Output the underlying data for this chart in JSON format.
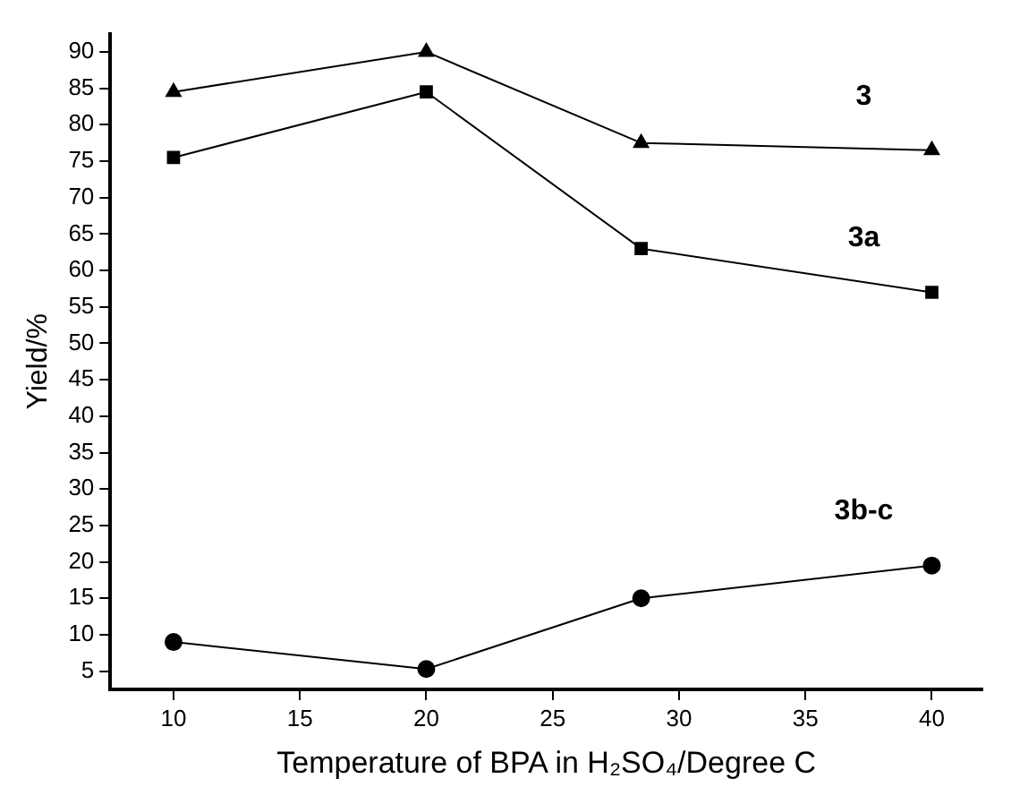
{
  "chart_data": {
    "type": "line",
    "xlabel": "Temperature of BPA in H₂SO₄/Degree C",
    "ylabel": "Yield/%",
    "x": [
      10,
      20,
      28.5,
      40
    ],
    "series": [
      {
        "name": "3",
        "color": "#000000",
        "marker": "triangle",
        "values": [
          84.5,
          90,
          77.5,
          76.5
        ]
      },
      {
        "name": "3a",
        "color": "#000000",
        "marker": "square",
        "values": [
          75.5,
          84.5,
          63,
          57
        ]
      },
      {
        "name": "3b-c",
        "color": "#000000",
        "marker": "circle",
        "values": [
          9,
          5.3,
          15,
          19.5
        ]
      }
    ],
    "xlim": [
      7.5,
      42
    ],
    "xticks": [
      10,
      15,
      20,
      25,
      30,
      35,
      40
    ],
    "ylim": [
      2.5,
      92.5
    ],
    "yticks": [
      5,
      10,
      15,
      20,
      25,
      30,
      35,
      40,
      45,
      50,
      55,
      60,
      65,
      70,
      75,
      80,
      85,
      90
    ],
    "grid": false,
    "legend": false,
    "line_style": "solid"
  }
}
